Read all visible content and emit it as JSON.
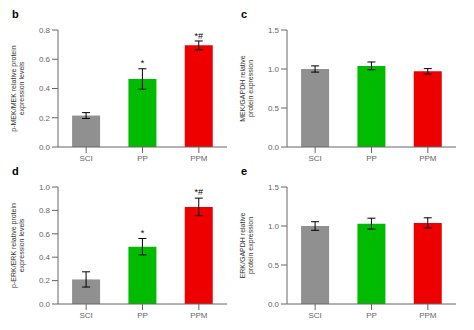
{
  "chart_data": [
    {
      "type": "bar",
      "title": "b",
      "categories": [
        "SCI",
        "PP",
        "PPM"
      ],
      "values": [
        0.215,
        0.465,
        0.695
      ],
      "errors": [
        0.02,
        0.07,
        0.03
      ],
      "colors": [
        "#909090",
        "#00bb00",
        "#ee0000"
      ],
      "ylabel": "p-MEK/MEK relative protein\nexpression levels",
      "ylim": [
        0,
        0.8
      ],
      "yticks": [
        {
          "value": 0.0,
          "label": "0.0"
        },
        0.2,
        0.4,
        0.6,
        0.8
      ],
      "annotations": [
        {
          "text": "*",
          "x": "PP",
          "y": 0.545
        },
        {
          "text": "*#",
          "x": "PPM",
          "y": 0.735
        }
      ]
    },
    {
      "type": "bar",
      "title": "c",
      "categories": [
        "SCI",
        "PP",
        "PPM"
      ],
      "values": [
        1.0,
        1.04,
        0.97
      ],
      "errors": [
        0.04,
        0.05,
        0.035
      ],
      "colors": [
        "#909090",
        "#00bb00",
        "#ee0000"
      ],
      "ylabel": "MEK/GAPDH relative\nprotein expression",
      "ylim": [
        0,
        1.5
      ],
      "yticks": [
        {
          "value": 0.0,
          "label": "0.0"
        },
        0.5,
        {
          "value": 1.0,
          "label": "1.0"
        },
        1.5
      ],
      "annotations": []
    },
    {
      "type": "bar",
      "title": "d",
      "categories": [
        "SCI",
        "PP",
        "PPM"
      ],
      "values": [
        0.21,
        0.49,
        0.83
      ],
      "errors": [
        0.065,
        0.07,
        0.075
      ],
      "colors": [
        "#909090",
        "#00bb00",
        "#ee0000"
      ],
      "ylabel": "p-ERK/ERK relative protein\nexpression levels",
      "ylim": [
        0,
        1.0
      ],
      "yticks": [
        {
          "value": 0.0,
          "label": "0.0"
        },
        0.2,
        0.4,
        0.6,
        0.8,
        {
          "value": 1.0,
          "label": "1.0"
        }
      ],
      "annotations": [
        {
          "text": "*",
          "x": "PP",
          "y": 0.575
        },
        {
          "text": "*#",
          "x": "PPM",
          "y": 0.92
        }
      ]
    },
    {
      "type": "bar",
      "title": "e",
      "categories": [
        "SCI",
        "PP",
        "PPM"
      ],
      "values": [
        1.0,
        1.03,
        1.04
      ],
      "errors": [
        0.055,
        0.07,
        0.065
      ],
      "colors": [
        "#909090",
        "#00bb00",
        "#ee0000"
      ],
      "ylabel": "ERK/GAPDH relative\nprotein expression",
      "ylim": [
        0,
        1.5
      ],
      "yticks": [
        {
          "value": 0.0,
          "label": "0.0"
        },
        0.5,
        {
          "value": 1.0,
          "label": "1.0"
        },
        1.5
      ],
      "annotations": []
    }
  ]
}
